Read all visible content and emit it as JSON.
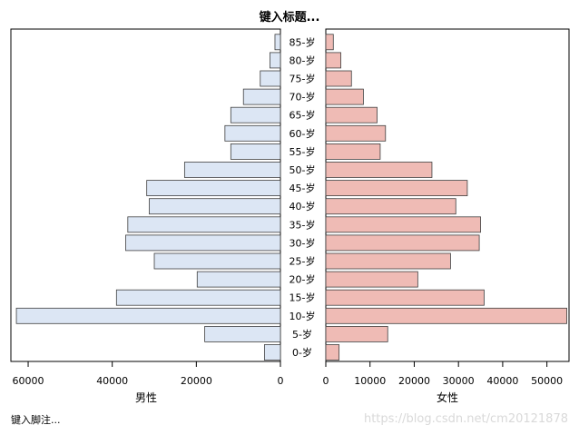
{
  "chart_data": {
    "type": "bar",
    "orientation": "horizontal",
    "title": "键入标题...",
    "footnote": "键入脚注...",
    "watermark": "https://blog.csdn.net/cm20121878",
    "categories": [
      "0-岁",
      "5-岁",
      "10-岁",
      "15-岁",
      "20-岁",
      "25-岁",
      "30-岁",
      "35-岁",
      "40-岁",
      "45-岁",
      "50-岁",
      "55-岁",
      "60-岁",
      "65-岁",
      "70-岁",
      "75-岁",
      "80-岁",
      "85-岁"
    ],
    "series": [
      {
        "name": "男性",
        "color": "#dce6f4",
        "values": [
          3800,
          18000,
          62800,
          39000,
          19800,
          30000,
          36800,
          36300,
          31200,
          31800,
          22800,
          11800,
          13200,
          11800,
          8800,
          4800,
          2500,
          1300
        ]
      },
      {
        "name": "女性",
        "color": "#efbbb5",
        "values": [
          3000,
          14000,
          54500,
          35800,
          20800,
          28200,
          34700,
          35000,
          29400,
          32000,
          24000,
          12300,
          13500,
          11600,
          8500,
          5800,
          3400,
          1700
        ]
      }
    ],
    "left_axis": {
      "xlabel": "男性",
      "xlim": [
        0,
        64000
      ],
      "ticks": [
        60000,
        40000,
        20000,
        0
      ],
      "reversed": true
    },
    "right_axis": {
      "xlabel": "女性",
      "xlim": [
        0,
        55000
      ],
      "ticks": [
        0,
        10000,
        20000,
        30000,
        40000,
        50000
      ]
    },
    "grid": false,
    "legend": "none"
  }
}
